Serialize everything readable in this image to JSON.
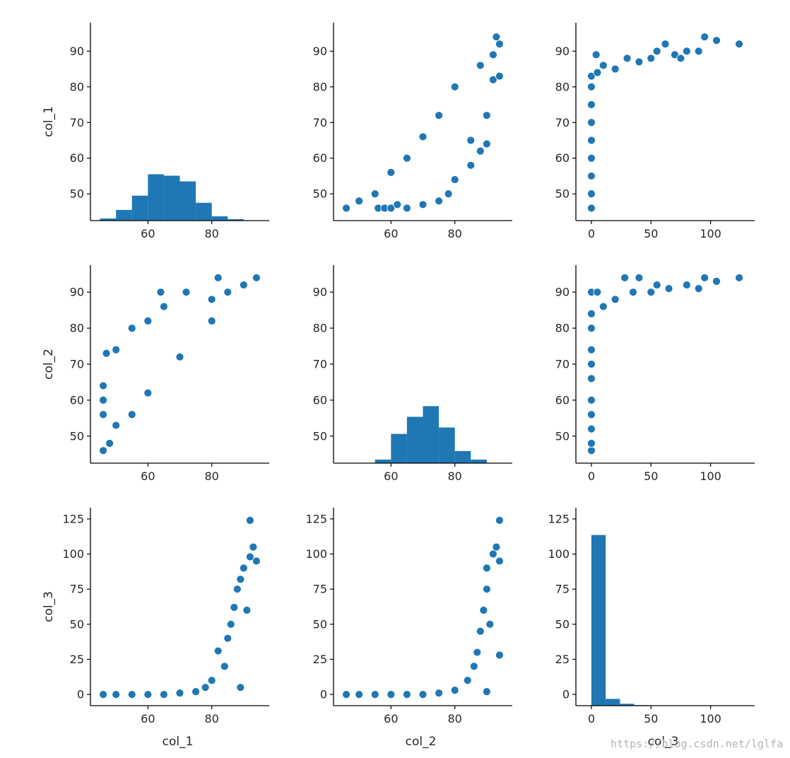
{
  "chart_data": {
    "type": "scatter",
    "title": "",
    "variables": [
      "col_1",
      "col_2",
      "col_3"
    ],
    "color": "#1f77b4",
    "axis_ticks": {
      "col_1": {
        "hist_ticks": [
          60,
          80
        ],
        "hist_range": [
          42,
          98
        ],
        "y_ticks": [
          50,
          60,
          70,
          80,
          90
        ],
        "y_range": [
          42.5,
          98
        ]
      },
      "col_2": {
        "hist_ticks": [
          60,
          80
        ],
        "hist_range": [
          42,
          98
        ],
        "y_ticks": [
          50,
          60,
          70,
          80,
          90
        ],
        "y_range": [
          42.5,
          97.5
        ]
      },
      "col_3": {
        "hist_ticks": [
          0,
          50,
          100
        ],
        "hist_range": [
          -13,
          137
        ],
        "y_ticks": [
          0,
          25,
          50,
          75,
          100,
          125
        ],
        "y_range": [
          -8,
          133
        ]
      }
    },
    "panels": [
      {
        "row": "col_1",
        "col": "col_1",
        "kind": "hist",
        "bins": [
          [
            45,
            50,
            0.6
          ],
          [
            50,
            55,
            3
          ],
          [
            55,
            60,
            7
          ],
          [
            60,
            65,
            13
          ],
          [
            65,
            70,
            12.6
          ],
          [
            70,
            75,
            11
          ],
          [
            75,
            80,
            5
          ],
          [
            80,
            85,
            1.2
          ],
          [
            85,
            90,
            0.4
          ]
        ],
        "hist_ymax": 20
      },
      {
        "row": "col_1",
        "col": "col_2",
        "kind": "scatter",
        "points": [
          [
            46,
            46
          ],
          [
            50,
            48
          ],
          [
            55,
            50
          ],
          [
            56,
            46
          ],
          [
            58,
            46
          ],
          [
            60,
            46
          ],
          [
            62,
            47
          ],
          [
            65,
            46
          ],
          [
            70,
            47
          ],
          [
            75,
            48
          ],
          [
            78,
            50
          ],
          [
            80,
            54
          ],
          [
            85,
            58
          ],
          [
            88,
            62
          ],
          [
            90,
            64
          ],
          [
            90,
            72
          ],
          [
            92,
            82
          ],
          [
            94,
            83
          ],
          [
            92,
            89
          ],
          [
            94,
            92
          ],
          [
            93,
            94
          ],
          [
            88,
            86
          ],
          [
            85,
            65
          ],
          [
            80,
            80
          ],
          [
            75,
            72
          ],
          [
            70,
            66
          ],
          [
            65,
            60
          ],
          [
            60,
            56
          ]
        ]
      },
      {
        "row": "col_1",
        "col": "col_3",
        "kind": "scatter",
        "points": [
          [
            0,
            46
          ],
          [
            0,
            50
          ],
          [
            0,
            55
          ],
          [
            0,
            60
          ],
          [
            0,
            65
          ],
          [
            0,
            70
          ],
          [
            0,
            75
          ],
          [
            0,
            80
          ],
          [
            0,
            83
          ],
          [
            4,
            89
          ],
          [
            5,
            84
          ],
          [
            10,
            86
          ],
          [
            20,
            85
          ],
          [
            30,
            88
          ],
          [
            40,
            87
          ],
          [
            50,
            88
          ],
          [
            55,
            90
          ],
          [
            62,
            92
          ],
          [
            70,
            89
          ],
          [
            75,
            88
          ],
          [
            80,
            90
          ],
          [
            90,
            90
          ],
          [
            95,
            94
          ],
          [
            105,
            93
          ],
          [
            124,
            92
          ]
        ]
      },
      {
        "row": "col_2",
        "col": "col_1",
        "kind": "scatter",
        "points": [
          [
            46,
            46
          ],
          [
            46,
            56
          ],
          [
            46,
            60
          ],
          [
            46,
            64
          ],
          [
            47,
            73
          ],
          [
            50,
            74
          ],
          [
            55,
            80
          ],
          [
            60,
            82
          ],
          [
            64,
            90
          ],
          [
            65,
            86
          ],
          [
            72,
            90
          ],
          [
            80,
            88
          ],
          [
            82,
            94
          ],
          [
            85,
            90
          ],
          [
            90,
            92
          ],
          [
            94,
            94
          ],
          [
            50,
            53
          ],
          [
            55,
            56
          ],
          [
            60,
            62
          ],
          [
            70,
            72
          ],
          [
            80,
            82
          ],
          [
            48,
            48
          ]
        ]
      },
      {
        "row": "col_2",
        "col": "col_2",
        "kind": "hist",
        "bins": [
          [
            55,
            60,
            1
          ],
          [
            60,
            65,
            8.2
          ],
          [
            65,
            70,
            13
          ],
          [
            70,
            75,
            16
          ],
          [
            75,
            80,
            10
          ],
          [
            80,
            85,
            3.4
          ],
          [
            85,
            90,
            1
          ]
        ],
        "hist_ymax": 20
      },
      {
        "row": "col_2",
        "col": "col_3",
        "kind": "scatter",
        "points": [
          [
            0,
            46
          ],
          [
            0,
            48
          ],
          [
            0,
            52
          ],
          [
            0,
            56
          ],
          [
            0,
            60
          ],
          [
            0,
            66
          ],
          [
            0,
            70
          ],
          [
            0,
            74
          ],
          [
            0,
            80
          ],
          [
            0,
            84
          ],
          [
            0,
            90
          ],
          [
            5,
            90
          ],
          [
            10,
            86
          ],
          [
            20,
            88
          ],
          [
            28,
            94
          ],
          [
            35,
            90
          ],
          [
            40,
            94
          ],
          [
            50,
            90
          ],
          [
            55,
            92
          ],
          [
            65,
            91
          ],
          [
            80,
            92
          ],
          [
            90,
            91
          ],
          [
            95,
            94
          ],
          [
            105,
            93
          ],
          [
            124,
            94
          ]
        ]
      },
      {
        "row": "col_3",
        "col": "col_1",
        "kind": "scatter",
        "points": [
          [
            46,
            0
          ],
          [
            50,
            0
          ],
          [
            55,
            0
          ],
          [
            60,
            0
          ],
          [
            65,
            0
          ],
          [
            70,
            1
          ],
          [
            75,
            2
          ],
          [
            78,
            5
          ],
          [
            80,
            10
          ],
          [
            82,
            31
          ],
          [
            84,
            20
          ],
          [
            85,
            40
          ],
          [
            86,
            50
          ],
          [
            87,
            62
          ],
          [
            88,
            75
          ],
          [
            89,
            82
          ],
          [
            89,
            5
          ],
          [
            90,
            90
          ],
          [
            91,
            60
          ],
          [
            92,
            98
          ],
          [
            92,
            124
          ],
          [
            93,
            105
          ],
          [
            94,
            95
          ]
        ]
      },
      {
        "row": "col_3",
        "col": "col_2",
        "kind": "scatter",
        "points": [
          [
            46,
            0
          ],
          [
            50,
            0
          ],
          [
            55,
            0
          ],
          [
            60,
            0
          ],
          [
            65,
            0
          ],
          [
            70,
            0
          ],
          [
            75,
            1
          ],
          [
            80,
            3
          ],
          [
            84,
            10
          ],
          [
            86,
            20
          ],
          [
            87,
            30
          ],
          [
            88,
            45
          ],
          [
            89,
            60
          ],
          [
            90,
            75
          ],
          [
            90,
            90
          ],
          [
            91,
            50
          ],
          [
            92,
            100
          ],
          [
            93,
            105
          ],
          [
            94,
            124
          ],
          [
            94,
            95
          ],
          [
            94,
            28
          ],
          [
            90,
            2
          ]
        ]
      },
      {
        "row": "col_3",
        "col": "col_3",
        "kind": "hist",
        "bins": [
          [
            0,
            12,
            126
          ],
          [
            12,
            24,
            5
          ],
          [
            24,
            36,
            1.4
          ],
          [
            36,
            48,
            0.4
          ],
          [
            48,
            124,
            0.2
          ]
        ],
        "hist_ymax": 133
      }
    ]
  },
  "watermark": "https://blog.csdn.net/lglfa"
}
